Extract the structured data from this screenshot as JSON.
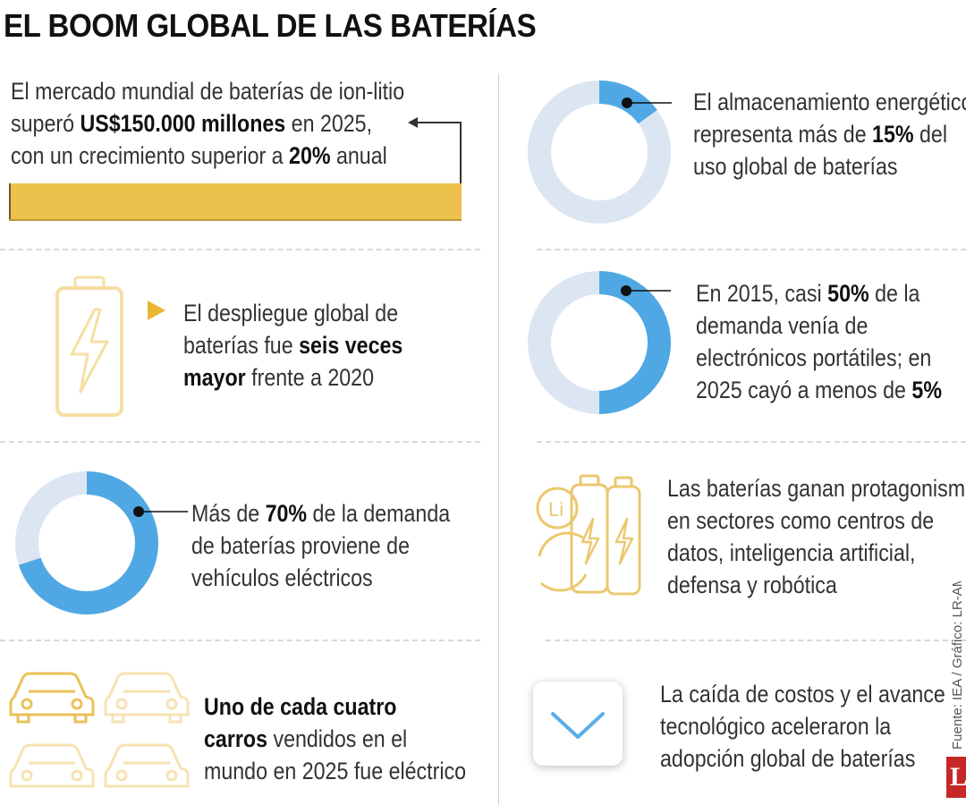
{
  "title": "EL BOOM GLOBAL DE LAS BATERÍAS",
  "colors": {
    "gold": "#ecc24d",
    "gold_light": "#f6dfa3",
    "blue": "#4fa8e3",
    "blue_light": "#dce6f3",
    "divider": "#d9d9d9",
    "brand_red": "#c62828"
  },
  "blocks": {
    "market": {
      "l1": "El mercado mundial de baterías de ion-litio",
      "l2_a": "superó ",
      "l2_b": "US$150.000 millones",
      "l2_c": " en 2025,",
      "l3_a": "con un crecimiento superior a ",
      "l3_b": "20%",
      "l3_c": " anual"
    },
    "storage": {
      "percent": 15,
      "l1": "El almacenamiento energético",
      "l2_a": "representa más de ",
      "l2_b": "15%",
      "l2_c": " del",
      "l3": "uso global de baterías"
    },
    "deployment": {
      "icon": "battery-charging-icon",
      "l1": "El despliegue global de",
      "l2_a": "baterías fue ",
      "l2_b": "seis veces",
      "l3_a": "mayor",
      "l3_b": " frente a 2020"
    },
    "electronics": {
      "percent": 50,
      "l1_a": "En 2015, casi ",
      "l1_b": "50%",
      "l1_c": " de la",
      "l2": "demanda venía de",
      "l3": "electrónicos portátiles; en",
      "l4_a": "2025 cayó a menos de ",
      "l4_b": "5%"
    },
    "ev": {
      "percent": 70,
      "l1_a": "Más de ",
      "l1_b": "70%",
      "l1_c": " de la demanda",
      "l2": "de baterías proviene de",
      "l3": "vehículos eléctricos"
    },
    "sectors": {
      "icon": "lithium-batteries-icon",
      "icon_label": "Li",
      "l1": "Las baterías ganan protagonismo",
      "l2": "en sectores como centros de",
      "l3": "datos, inteligencia artificial,",
      "l4": "defensa y robótica"
    },
    "cars": {
      "icon": "cars-icon",
      "l1": "Uno de cada cuatro",
      "l2_a": "carros",
      "l2_b": " vendidos en el",
      "l3": "mundo en 2025 fue eléctrico"
    },
    "costs": {
      "icon": "chevron-down-icon",
      "l1": "La caída de costos y el avance",
      "l2": "tecnológico aceleraron la",
      "l3": "adopción global de baterías"
    }
  },
  "source": "Fuente: IEA / Gráfico: LR-AM",
  "logo": "L"
}
